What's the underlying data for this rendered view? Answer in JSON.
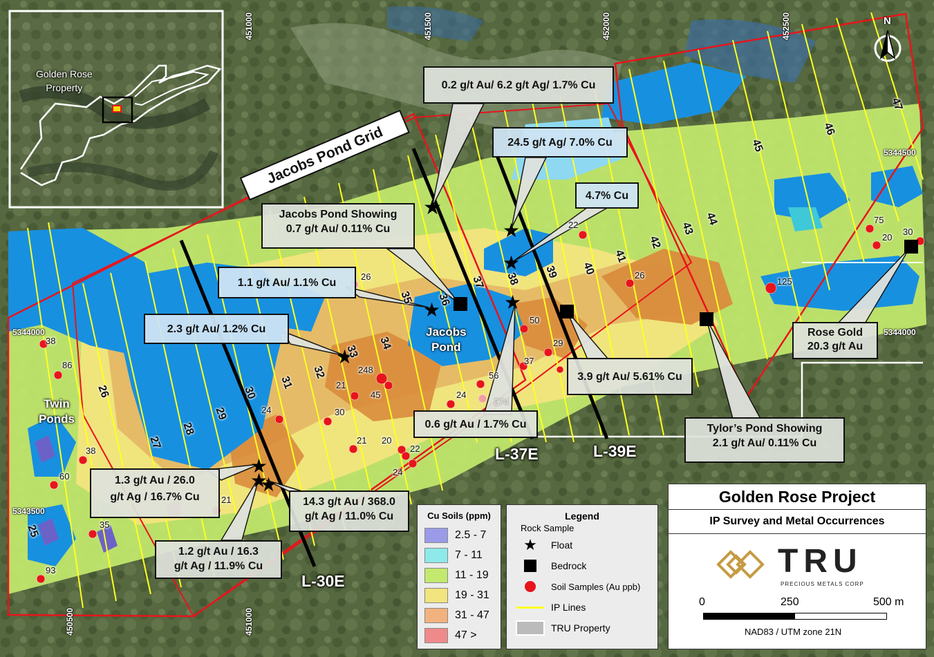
{
  "title": {
    "project": "Golden Rose Project",
    "subtitle": "IP Survey and Metal Occurrences"
  },
  "logo": {
    "wordmark": "TRU",
    "tagline": "PRECIOUS METALS CORP"
  },
  "scale_bar": {
    "labels": [
      "0",
      "250",
      "500 m"
    ],
    "projection": "NAD83 / UTM zone 21N"
  },
  "north_arrow": "N",
  "grid_name": "Jacobs Pond Grid",
  "inset": {
    "label": "Golden Rose\nProperty"
  },
  "coord_ticks": {
    "easting_top": [
      "451000",
      "451500",
      "452000",
      "452500"
    ],
    "easting_bottom": [
      "450500",
      "451000"
    ],
    "northing_left": [
      "5344000",
      "5343500"
    ],
    "northing_right": [
      "5344500",
      "5344000"
    ]
  },
  "survey_lines": [
    "L-30E",
    "L-37E",
    "L-39E"
  ],
  "line_numbers": [
    "25",
    "26",
    "27",
    "28",
    "29",
    "30",
    "31",
    "32",
    "33",
    "34",
    "35",
    "36",
    "37",
    "38",
    "39",
    "40",
    "41",
    "42",
    "43",
    "44",
    "45",
    "46",
    "47"
  ],
  "places": [
    "Twin\nPonds",
    "Jacobs\nPond"
  ],
  "callouts": [
    {
      "text": "0.2 g/t Au/ 6.2 g/t Ag/ 1.7% Cu"
    },
    {
      "text": "24.5 g/t Ag/ 7.0% Cu"
    },
    {
      "text": "4.7% Cu"
    },
    {
      "text": "Jacobs Pond Showing\n0.7 g/t Au/ 0.11% Cu"
    },
    {
      "text": "1.1 g/t Au/ 1.1% Cu"
    },
    {
      "text": "2.3 g/t Au/ 1.2% Cu"
    },
    {
      "text": "Rose Gold\n20.3 g/t Au"
    },
    {
      "text": "3.9 g/t Au/ 5.61% Cu"
    },
    {
      "text": "0.6 g/t Au / 1.7% Cu"
    },
    {
      "text": "Tylor’s Pond Showing\n2.1 g/t Au/ 0.11% Cu"
    },
    {
      "text": "1.3 g/t Au / 26.0\ng/t Ag / 16.7% Cu"
    },
    {
      "text": "14.3 g/t Au / 368.0\ng/t Ag / 11.0% Cu"
    },
    {
      "text": "1.2 g/t Au / 16.3\ng/t Ag / 11.9% Cu"
    }
  ],
  "soil_samples_au_ppb": [
    "38",
    "86",
    "38",
    "60",
    "21",
    "35",
    "93",
    "24",
    "21",
    "45",
    "248",
    "30",
    "21",
    "20",
    "22",
    "24",
    "26",
    "24",
    "274",
    "56",
    "37",
    "29",
    "50",
    "26",
    "22",
    "125",
    "75",
    "20",
    "30"
  ],
  "legend_soils": {
    "title": "Cu Soils (ppm)",
    "items": [
      {
        "label": "2.5 - 7",
        "color": "#9a9ae8"
      },
      {
        "label": "7 - 11",
        "color": "#8eeaea"
      },
      {
        "label": "11 - 19",
        "color": "#c3ea6e"
      },
      {
        "label": "19 - 31",
        "color": "#f2e47e"
      },
      {
        "label": "31 - 47",
        "color": "#f2b27e"
      },
      {
        "label": "47 >",
        "color": "#ef8a8a"
      }
    ]
  },
  "legend": {
    "title": "Legend",
    "subtitle": "Rock Sample",
    "items": [
      {
        "label": "Float",
        "symbol": "star"
      },
      {
        "label": "Bedrock",
        "symbol": "square"
      },
      {
        "label": "Soil Samples (Au ppb)",
        "symbol": "red-dot"
      },
      {
        "label": "IP Lines",
        "symbol": "yellow-line"
      },
      {
        "label": "TRU Property",
        "symbol": "outline-box"
      }
    ]
  },
  "colors": {
    "ip_line": "#ffff22",
    "grid_outline": "#e8141c",
    "soil_dot": "#e8141c",
    "property": "#ffffff"
  }
}
